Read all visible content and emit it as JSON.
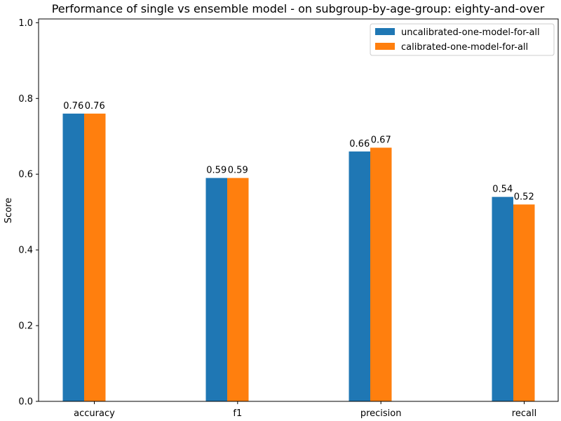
{
  "chart_data": {
    "type": "bar",
    "title": "Performance of single vs ensemble model - on subgroup-by-age-group: eighty-and-over",
    "xlabel": "",
    "ylabel": "Score",
    "ylim": [
      0,
      1.01
    ],
    "yticks": [
      "0.0",
      "0.2",
      "0.4",
      "0.6",
      "0.8",
      "1.0"
    ],
    "categories": [
      "accuracy",
      "f1",
      "precision",
      "recall"
    ],
    "series": [
      {
        "name": "uncalibrated-one-model-for-all",
        "color": "#1f77b4",
        "values": [
          0.76,
          0.59,
          0.66,
          0.54
        ],
        "labels": [
          "0.76",
          "0.59",
          "0.66",
          "0.54"
        ]
      },
      {
        "name": "calibrated-one-model-for-all",
        "color": "#ff7f0e",
        "values": [
          0.76,
          0.59,
          0.67,
          0.52
        ],
        "labels": [
          "0.76",
          "0.59",
          "0.67",
          "0.52"
        ]
      }
    ],
    "grid": false,
    "legend_position": "top-right"
  }
}
